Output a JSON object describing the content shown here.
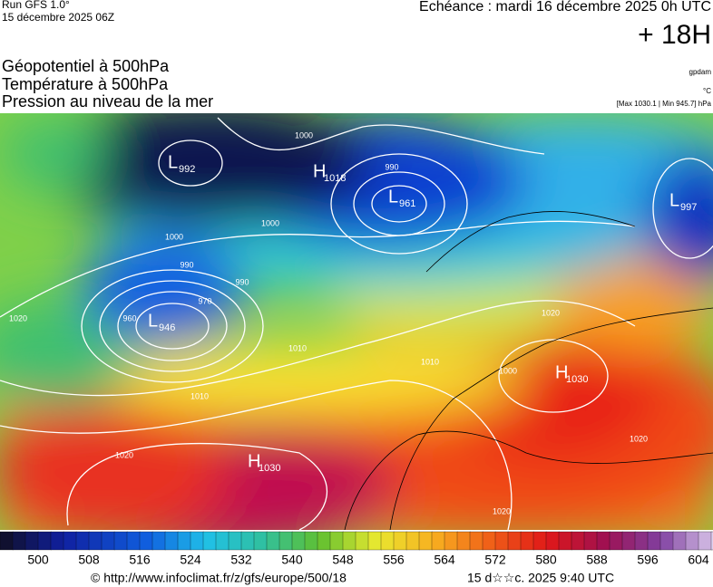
{
  "header": {
    "run": "Run GFS 1.0°",
    "run_date": "15 décembre 2025 06Z",
    "valid": "Echéance : mardi 16 décembre 2025 0h UTC",
    "lead": "+ 18H"
  },
  "fields": [
    "Géopotentiel à 500hPa",
    "Température à 500hPa",
    "Pression au niveau de la mer"
  ],
  "units": {
    "geopotential": "gpdam",
    "temperature": "°C",
    "pressure": "[Max 1030.1 | Min 945.7] hPa"
  },
  "centers": [
    {
      "letter": "L",
      "value": 992
    },
    {
      "letter": "H",
      "value": 1018
    },
    {
      "letter": "L",
      "value": 961
    },
    {
      "letter": "L",
      "value": 997
    },
    {
      "letter": "L",
      "value": 946
    },
    {
      "letter": "H",
      "value": 1030
    },
    {
      "letter": "H",
      "value": 1030
    }
  ],
  "isobar_labels": [
    1000,
    990,
    1000,
    990,
    990,
    1000,
    970,
    960,
    1020,
    1010,
    1010,
    1020,
    1020,
    1020,
    1020,
    1000,
    1010
  ],
  "colorbar": {
    "labels": [
      500,
      508,
      516,
      524,
      532,
      540,
      548,
      556,
      564,
      572,
      580,
      588,
      596,
      604
    ]
  },
  "footer": {
    "source": "© http://www.infoclimat.fr/z/gfs/europe/500/18",
    "generated": "15 d☆☆c. 2025  9:40 UTC"
  }
}
